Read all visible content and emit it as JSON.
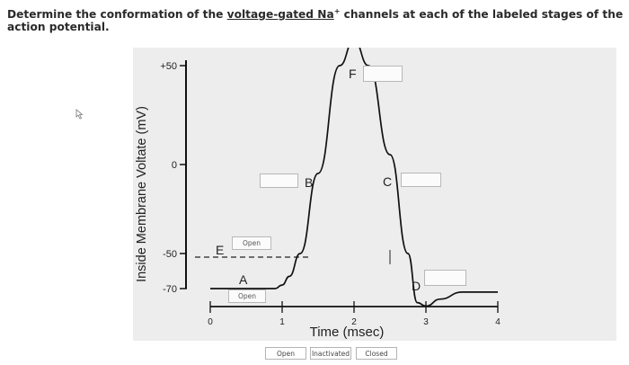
{
  "question": {
    "before": "Determine the conformation of the ",
    "underlined": "voltage-gated Na",
    "superscript": "+",
    "after": " channels at each of the labeled stages of the action potential."
  },
  "chart_data": {
    "type": "line",
    "ylabel": "Inside Membrane Voltate (mV)",
    "xlabel": "Time (msec)",
    "y_ticks": [
      "+50",
      "0",
      "-50",
      "-70"
    ],
    "x_ticks": [
      "0",
      "1",
      "2",
      "3",
      "4"
    ],
    "stage_labels": [
      "A",
      "B",
      "C",
      "D",
      "E",
      "F"
    ],
    "series": [
      {
        "x": [
          0,
          0.5,
          0.9,
          1.0,
          1.1,
          1.25,
          1.5,
          1.8,
          2.0,
          2.2,
          2.5,
          2.75,
          2.88,
          3.0,
          3.2,
          3.5,
          4.0
        ],
        "y": [
          -70,
          -70,
          -70,
          -68,
          -63,
          -50,
          -5,
          50,
          63,
          50,
          5,
          -50,
          -78,
          -80,
          -76,
          -72,
          -72
        ]
      }
    ],
    "threshold_mV": -55
  },
  "answer_boxes": {
    "A": "Open",
    "B": "",
    "C": "",
    "D": "",
    "E": "Open",
    "F": ""
  },
  "answer_bank": [
    "Open",
    "Inactivated",
    "Closed"
  ]
}
